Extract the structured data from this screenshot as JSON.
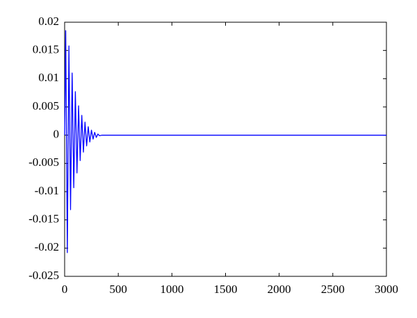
{
  "chart_data": {
    "type": "line",
    "x": [
      0,
      10,
      25,
      40,
      55,
      70,
      85,
      100,
      115,
      130,
      145,
      160,
      175,
      190,
      205,
      220,
      235,
      250,
      265,
      280,
      295,
      310,
      325,
      350,
      3000
    ],
    "values": [
      0,
      0.0185,
      -0.0208,
      0.0158,
      -0.0132,
      0.011,
      -0.0093,
      0.0077,
      -0.0067,
      0.0052,
      -0.0045,
      0.0035,
      -0.003,
      0.0023,
      -0.0019,
      0.0015,
      -0.0012,
      0.0009,
      -0.0007,
      0.0005,
      -0.0004,
      0.0002,
      -0.0001,
      0,
      0
    ],
    "color": "#0000ff",
    "xlim": [
      0,
      3000
    ],
    "xticks": [
      0,
      500,
      1000,
      1500,
      2000,
      2500,
      3000
    ],
    "ylim": [
      -0.025,
      0.02
    ],
    "yticks": [
      0.02,
      0.015,
      0.01,
      0.005,
      0,
      -0.005,
      -0.01,
      -0.015,
      -0.02,
      -0.025
    ],
    "grid": false
  }
}
